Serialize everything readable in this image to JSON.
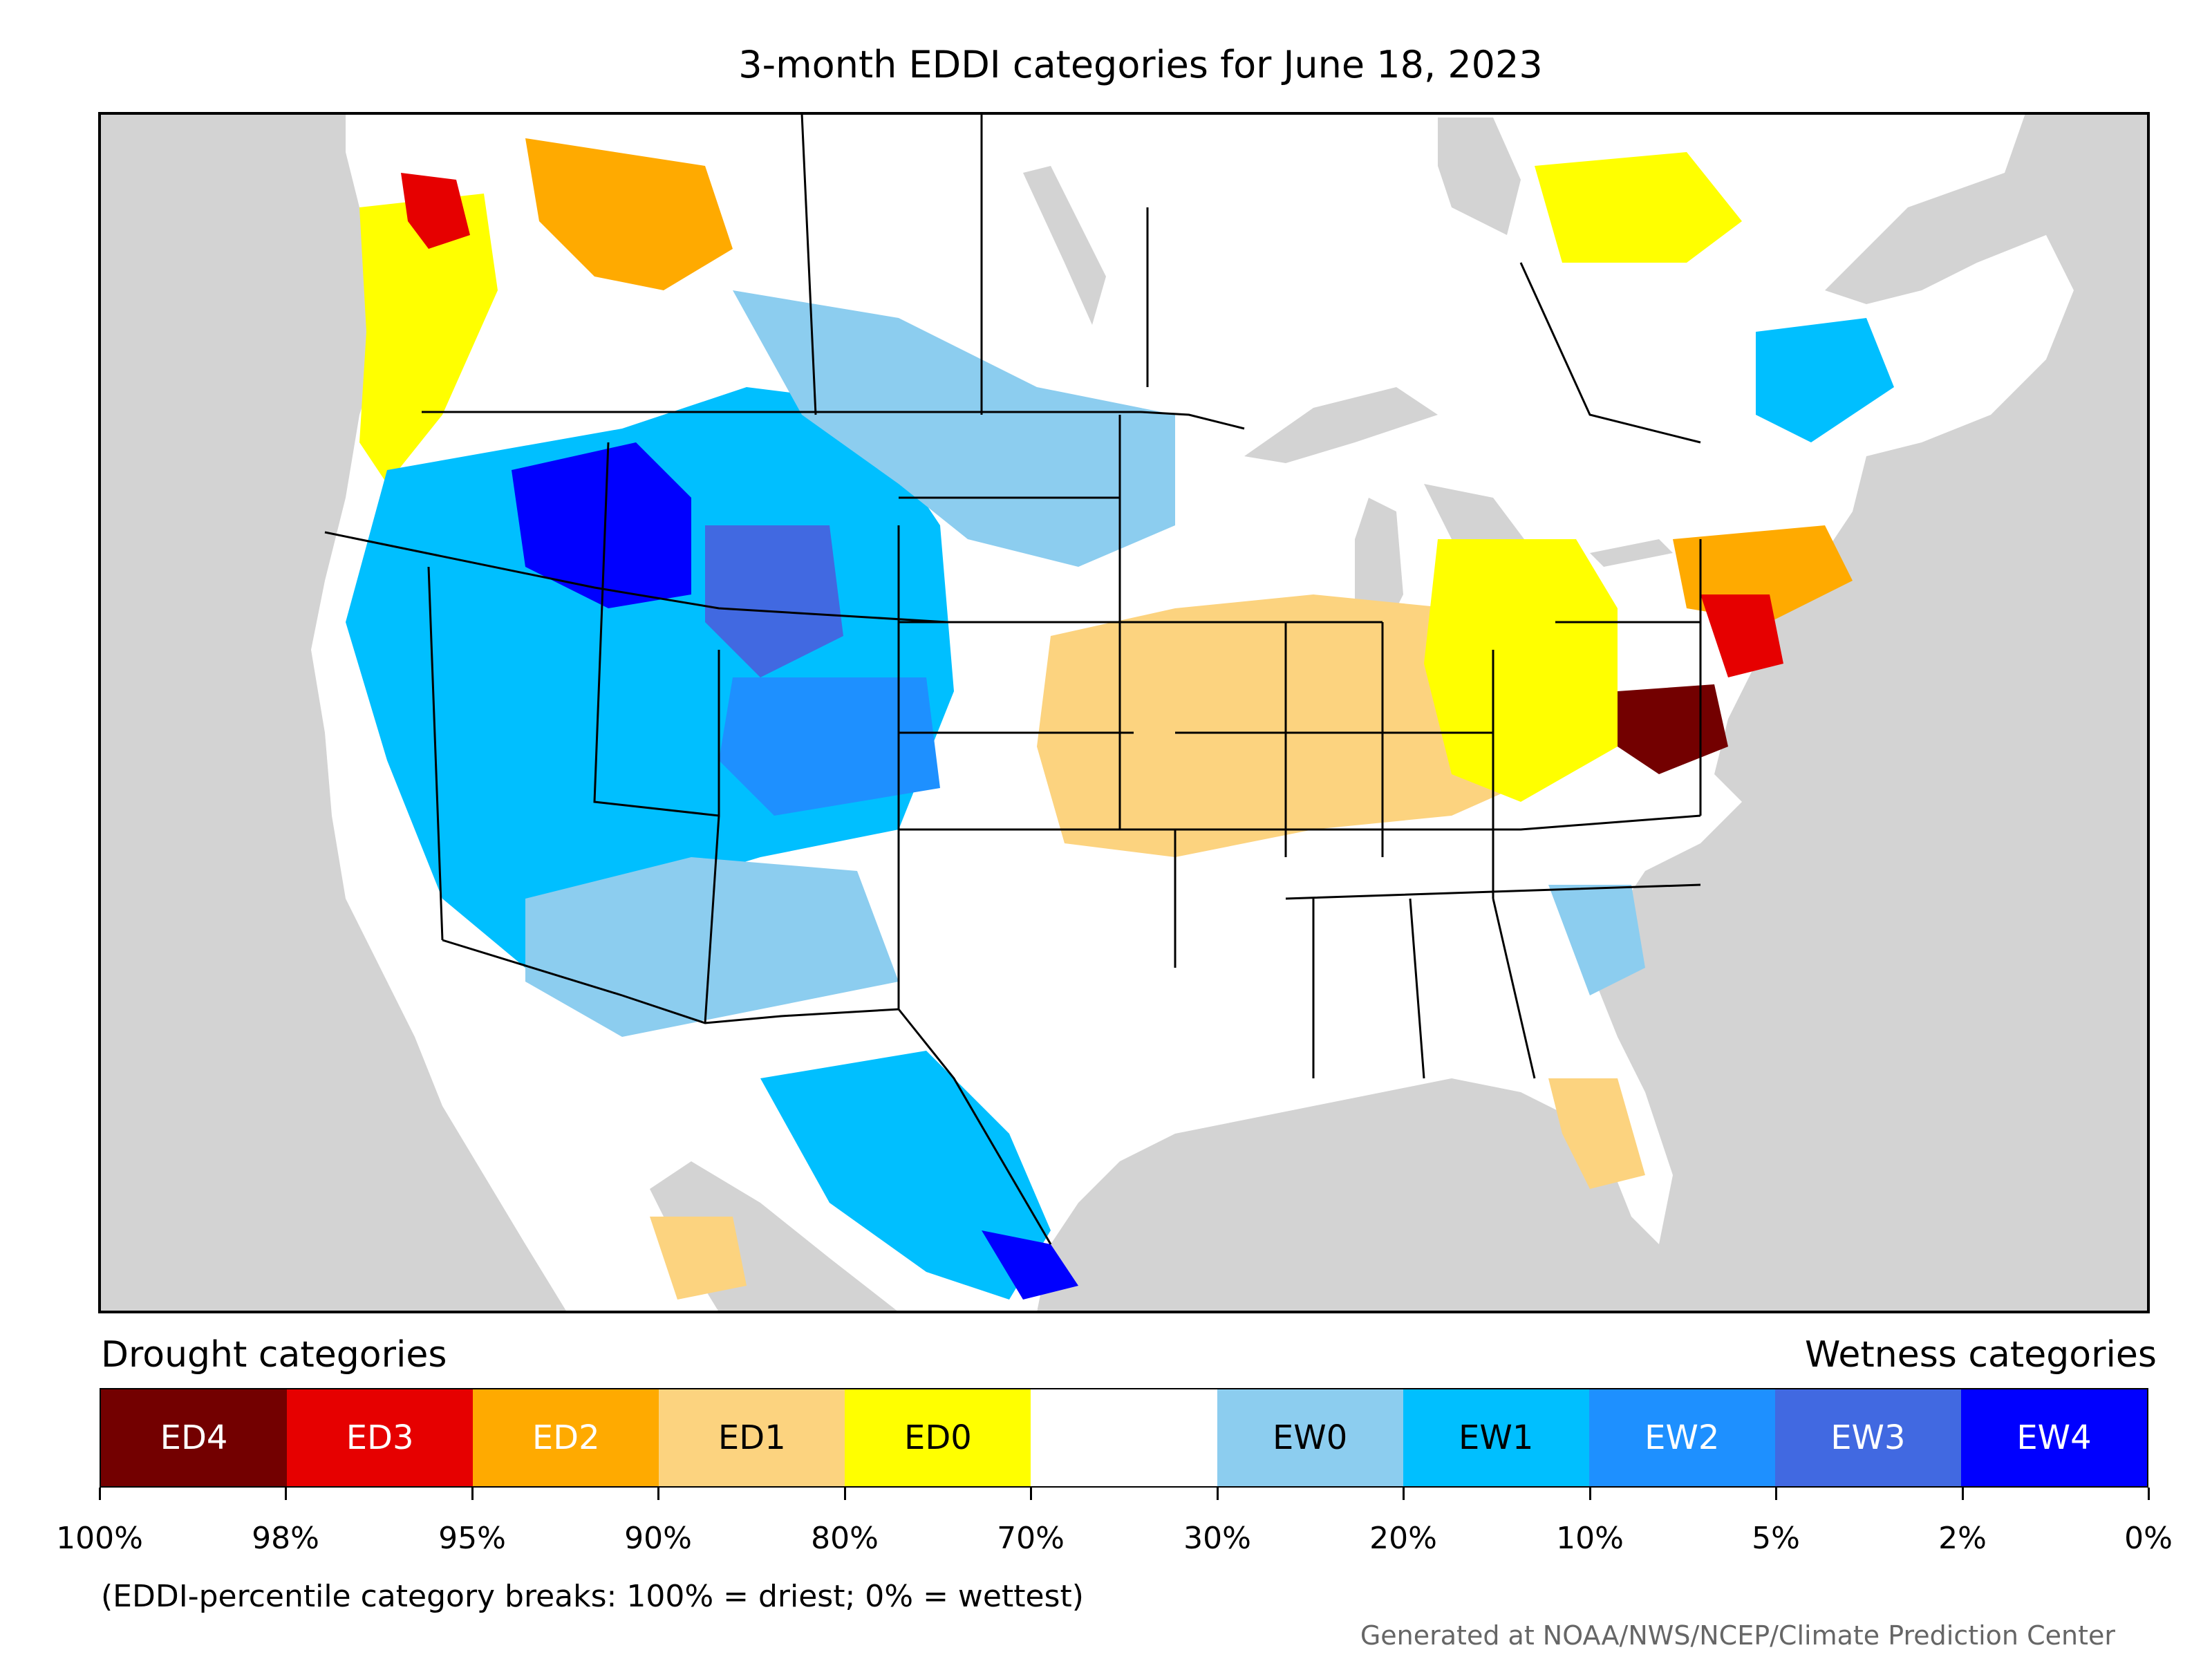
{
  "title": "3-month EDDI categories for June 18, 2023",
  "legend": {
    "left_heading": "Drought categories",
    "right_heading": "Wetness categories",
    "categories": [
      {
        "label": "ED4",
        "color": "#730000",
        "text_color": "#ffffff"
      },
      {
        "label": "ED3",
        "color": "#e60000",
        "text_color": "#ffffff"
      },
      {
        "label": "ED2",
        "color": "#ffaa00",
        "text_color": "#ffffff"
      },
      {
        "label": "ED1",
        "color": "#fcd37f",
        "text_color": "#000000"
      },
      {
        "label": "ED0",
        "color": "#ffff00",
        "text_color": "#000000"
      },
      {
        "label": "",
        "color": "#ffffff",
        "text_color": "#000000"
      },
      {
        "label": "EW0",
        "color": "#8ccdef",
        "text_color": "#000000"
      },
      {
        "label": "EW1",
        "color": "#00bfff",
        "text_color": "#000000"
      },
      {
        "label": "EW2",
        "color": "#1e90ff",
        "text_color": "#ffffff"
      },
      {
        "label": "EW3",
        "color": "#4169e1",
        "text_color": "#ffffff"
      },
      {
        "label": "EW4",
        "color": "#0000ff",
        "text_color": "#ffffff"
      }
    ],
    "tick_labels": [
      "100%",
      "98%",
      "95%",
      "90%",
      "80%",
      "70%",
      "30%",
      "20%",
      "10%",
      "5%",
      "2%",
      "0%"
    ]
  },
  "footnote": "(EDDI-percentile category breaks: 100% = driest; 0% = wettest)",
  "credit": "Generated at NOAA/NWS/NCEP/Climate Prediction Center",
  "map_colors": {
    "ocean": "#d3d3d3",
    "land": "#ffffff",
    "lakes": "#d3d3d3",
    "borders": "#000000"
  },
  "regions": [
    {
      "name": "pacific-northwest-dry",
      "category": "ED0"
    },
    {
      "name": "washington-coast-dry",
      "category": "ED3"
    },
    {
      "name": "british-columbia-dry",
      "category": "ED2"
    },
    {
      "name": "great-basin-wet",
      "category": "EW1"
    },
    {
      "name": "idaho-montana-wet",
      "category": "EW4"
    },
    {
      "name": "wyoming-wet",
      "category": "EW3"
    },
    {
      "name": "colorado-wet",
      "category": "EW2"
    },
    {
      "name": "southwest-wet",
      "category": "EW0"
    },
    {
      "name": "texas-wet",
      "category": "EW1"
    },
    {
      "name": "texas-coast-wet",
      "category": "EW4"
    },
    {
      "name": "northern-plains-wet",
      "category": "EW0"
    },
    {
      "name": "midwest-dry",
      "category": "ED1"
    },
    {
      "name": "ohio-valley-dry",
      "category": "ED0"
    },
    {
      "name": "virginia-maryland-dry",
      "category": "ED4"
    },
    {
      "name": "mid-atlantic-dry",
      "category": "ED3"
    },
    {
      "name": "new-england-dry",
      "category": "ED2"
    },
    {
      "name": "quebec-dry",
      "category": "ED0"
    },
    {
      "name": "quebec-wet",
      "category": "EW1"
    },
    {
      "name": "florida-dry",
      "category": "ED1"
    },
    {
      "name": "carolinas-wet",
      "category": "EW0"
    },
    {
      "name": "mexico-dry",
      "category": "ED1"
    }
  ]
}
